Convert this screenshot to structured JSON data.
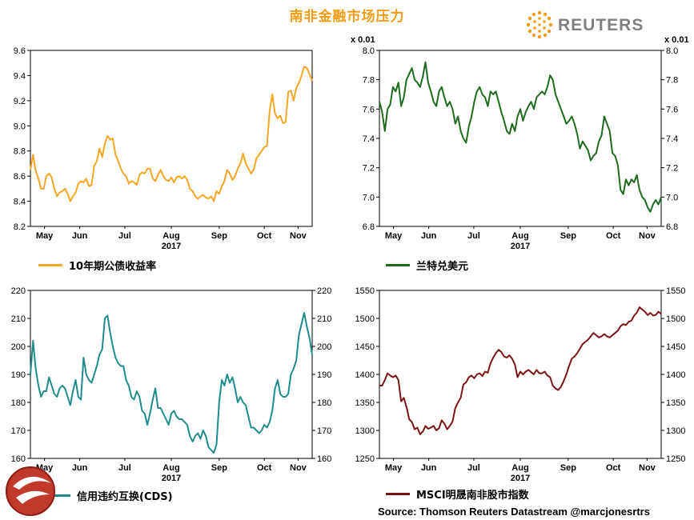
{
  "title": "南非金融市场压力",
  "brand": "REUTERS",
  "source": "Source: Thomson Reuters Datastream @marcjonesrtrs",
  "colors": {
    "title": "#f39c12",
    "bond": "#f5a623",
    "rand": "#1e6b1e",
    "cds": "#1e8c8c",
    "msci": "#7b1416",
    "logo_gray": "#808080"
  },
  "chart_data": [
    {
      "id": "bond",
      "type": "line",
      "legend": "10年期公债收益率",
      "color": "#f5a623",
      "ylim": [
        8.2,
        9.6
      ],
      "yticks": [
        "9.6",
        "9.4",
        "9.2",
        "9.0",
        "8.8",
        "8.6",
        "8.4",
        "8.2"
      ],
      "y_axis_side": "left",
      "unit": "",
      "xmonths": [
        "May",
        "Jun",
        "Jul",
        "Aug",
        "Sep",
        "Oct",
        "Nov"
      ],
      "year": "2017",
      "values": [
        8.65,
        8.77,
        8.64,
        8.58,
        8.5,
        8.5,
        8.6,
        8.62,
        8.59,
        8.5,
        8.44,
        8.47,
        8.48,
        8.5,
        8.46,
        8.4,
        8.44,
        8.47,
        8.54,
        8.56,
        8.55,
        8.58,
        8.52,
        8.53,
        8.68,
        8.72,
        8.82,
        8.75,
        8.86,
        8.92,
        8.89,
        8.9,
        8.77,
        8.72,
        8.66,
        8.62,
        8.6,
        8.54,
        8.56,
        8.55,
        8.53,
        8.61,
        8.63,
        8.62,
        8.66,
        8.66,
        8.58,
        8.56,
        8.61,
        8.65,
        8.6,
        8.57,
        8.56,
        8.59,
        8.55,
        8.59,
        8.6,
        8.58,
        8.6,
        8.57,
        8.5,
        8.48,
        8.44,
        8.42,
        8.44,
        8.45,
        8.43,
        8.42,
        8.44,
        8.4,
        8.48,
        8.46,
        8.52,
        8.56,
        8.65,
        8.62,
        8.57,
        8.6,
        8.66,
        8.7,
        8.78,
        8.7,
        8.66,
        8.62,
        8.65,
        8.74,
        8.77,
        8.8,
        8.83,
        8.84,
        9.12,
        9.25,
        9.1,
        9.06,
        9.08,
        9.02,
        9.03,
        9.27,
        9.28,
        9.2,
        9.3,
        9.34,
        9.4,
        9.47,
        9.46,
        9.41,
        9.36
      ]
    },
    {
      "id": "rand",
      "type": "line",
      "legend": "兰特兑美元",
      "color": "#1e6b1e",
      "ylim": [
        6.8,
        8.0
      ],
      "yticks": [
        "8.0",
        "7.8",
        "7.6",
        "7.4",
        "7.2",
        "7.0",
        "6.8"
      ],
      "y_axis_side": "both",
      "unit": "x 0.01",
      "xmonths": [
        "May",
        "Jun",
        "Jul",
        "Aug",
        "Sep",
        "Oct",
        "Nov"
      ],
      "year": "2017",
      "values": [
        7.65,
        7.58,
        7.45,
        7.6,
        7.63,
        7.75,
        7.72,
        7.78,
        7.62,
        7.68,
        7.8,
        7.84,
        7.88,
        7.8,
        7.78,
        7.75,
        7.82,
        7.92,
        7.78,
        7.72,
        7.65,
        7.62,
        7.72,
        7.75,
        7.68,
        7.62,
        7.65,
        7.6,
        7.5,
        7.55,
        7.45,
        7.4,
        7.37,
        7.48,
        7.55,
        7.65,
        7.72,
        7.75,
        7.7,
        7.68,
        7.62,
        7.72,
        7.7,
        7.72,
        7.65,
        7.58,
        7.52,
        7.45,
        7.43,
        7.5,
        7.45,
        7.55,
        7.6,
        7.52,
        7.58,
        7.62,
        7.65,
        7.6,
        7.68,
        7.7,
        7.72,
        7.7,
        7.75,
        7.83,
        7.8,
        7.7,
        7.65,
        7.6,
        7.55,
        7.5,
        7.52,
        7.55,
        7.5,
        7.43,
        7.33,
        7.38,
        7.35,
        7.32,
        7.25,
        7.28,
        7.3,
        7.38,
        7.42,
        7.55,
        7.5,
        7.45,
        7.3,
        7.28,
        7.22,
        7.05,
        7.02,
        7.12,
        7.08,
        7.12,
        7.1,
        7.15,
        7.05,
        7.0,
        6.98,
        6.93,
        6.9,
        6.95,
        6.98,
        6.95,
        7.0
      ]
    },
    {
      "id": "cds",
      "type": "line",
      "legend": "信用违约互换(CDS)",
      "color": "#1e8c8c",
      "ylim": [
        160,
        220
      ],
      "yticks": [
        "220",
        "210",
        "200",
        "190",
        "180",
        "170",
        "160"
      ],
      "y_axis_side": "both",
      "unit": "",
      "xmonths": [
        "May",
        "Jun",
        "Jul",
        "Aug",
        "Sep",
        "Oct",
        "Nov"
      ],
      "year": "2017",
      "values": [
        190,
        202,
        192,
        186,
        182,
        184,
        184,
        189,
        186,
        183,
        182,
        185,
        186,
        185,
        182,
        179,
        184,
        188,
        182,
        181,
        196,
        190,
        188,
        187,
        190,
        193,
        197,
        199,
        210,
        211,
        205,
        200,
        196,
        194,
        193,
        193,
        188,
        186,
        182,
        181,
        184,
        182,
        177,
        176,
        172,
        176,
        181,
        185,
        178,
        178,
        176,
        174,
        172,
        176,
        177,
        175,
        174,
        174,
        173,
        172,
        168,
        166,
        168,
        169,
        167,
        170,
        168,
        164,
        163,
        162,
        165,
        180,
        188,
        186,
        190,
        187,
        189,
        185,
        180,
        182,
        180,
        179,
        175,
        171,
        171,
        170,
        169,
        170,
        172,
        171,
        173,
        177,
        185,
        188,
        183,
        182,
        182,
        183,
        190,
        192,
        195,
        204,
        208,
        212,
        207,
        203,
        197
      ]
    },
    {
      "id": "msci",
      "type": "line",
      "legend": "MSCI明晟南非股市指数",
      "color": "#7b1416",
      "ylim": [
        1250,
        1550
      ],
      "yticks": [
        "1550",
        "1500",
        "1450",
        "1400",
        "1350",
        "1300",
        "1250"
      ],
      "y_axis_side": "both",
      "unit": "",
      "xmonths": [
        "May",
        "Jun",
        "Jul",
        "Aug",
        "Sep",
        "Oct",
        "Nov"
      ],
      "year": "2017",
      "values": [
        1380,
        1380,
        1390,
        1402,
        1398,
        1395,
        1398,
        1390,
        1352,
        1358,
        1342,
        1320,
        1315,
        1302,
        1305,
        1293,
        1298,
        1308,
        1303,
        1305,
        1308,
        1300,
        1304,
        1318,
        1312,
        1302,
        1308,
        1316,
        1340,
        1350,
        1358,
        1382,
        1386,
        1395,
        1398,
        1393,
        1400,
        1402,
        1397,
        1405,
        1403,
        1420,
        1430,
        1438,
        1444,
        1440,
        1432,
        1430,
        1434,
        1428,
        1418,
        1395,
        1405,
        1400,
        1405,
        1408,
        1404,
        1400,
        1408,
        1402,
        1402,
        1405,
        1398,
        1395,
        1380,
        1375,
        1372,
        1378,
        1388,
        1400,
        1415,
        1428,
        1432,
        1438,
        1446,
        1454,
        1458,
        1462,
        1468,
        1474,
        1470,
        1466,
        1468,
        1472,
        1468,
        1466,
        1470,
        1474,
        1478,
        1486,
        1490,
        1488,
        1494,
        1496,
        1505,
        1510,
        1520,
        1516,
        1512,
        1506,
        1510,
        1505,
        1506,
        1512,
        1508
      ]
    }
  ]
}
